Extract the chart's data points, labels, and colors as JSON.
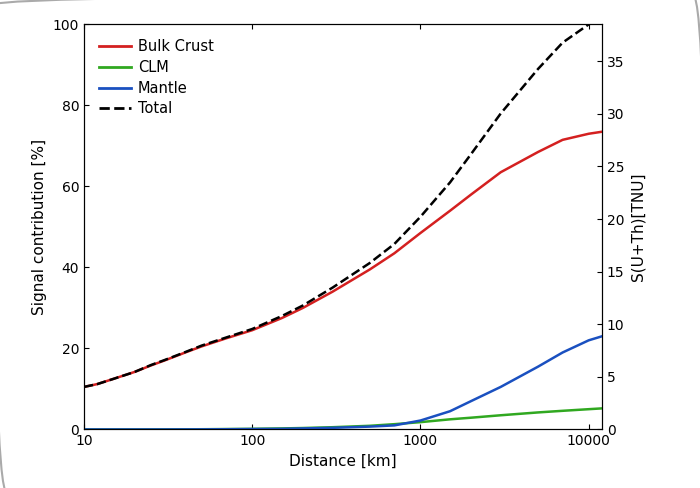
{
  "xlabel": "Distance [km]",
  "ylabel_left": "Signal contribution [%]",
  "ylabel_right": "S(U+Th)[TNU]",
  "xlim": [
    10,
    12000
  ],
  "ylim_left": [
    0,
    100
  ],
  "ylim_right": [
    0,
    38.5
  ],
  "yticks_left": [
    0,
    20,
    40,
    60,
    80,
    100
  ],
  "yticks_right": [
    0,
    5,
    10,
    15,
    20,
    25,
    30,
    35
  ],
  "xticks": [
    10,
    100,
    1000,
    10000
  ],
  "xticklabels": [
    "10",
    "100",
    "1000",
    "10000"
  ],
  "legend_labels": [
    "Bulk Crust",
    "CLM",
    "Mantle",
    "Total"
  ],
  "legend_colors": [
    "#d42020",
    "#30a820",
    "#1a50c0",
    "#000000"
  ],
  "legend_styles": [
    "-",
    "-",
    "-",
    "--"
  ],
  "bulk_crust_x": [
    10,
    12,
    15,
    20,
    25,
    30,
    40,
    50,
    70,
    100,
    150,
    200,
    300,
    500,
    700,
    1000,
    1500,
    2000,
    3000,
    5000,
    7000,
    10000,
    12000
  ],
  "bulk_crust_y": [
    10.5,
    11.2,
    12.5,
    14.2,
    15.8,
    17.0,
    19.0,
    20.5,
    22.5,
    24.5,
    27.5,
    30.0,
    34.0,
    39.5,
    43.5,
    48.5,
    54.0,
    58.0,
    63.5,
    68.5,
    71.5,
    73.0,
    73.5
  ],
  "clm_x": [
    10,
    20,
    30,
    50,
    70,
    100,
    150,
    200,
    300,
    500,
    700,
    1000,
    1500,
    2000,
    3000,
    5000,
    7000,
    10000,
    12000
  ],
  "clm_y": [
    0.0,
    0.0,
    0.02,
    0.05,
    0.1,
    0.15,
    0.25,
    0.35,
    0.55,
    0.9,
    1.3,
    1.8,
    2.5,
    2.9,
    3.5,
    4.2,
    4.6,
    5.0,
    5.2
  ],
  "mantle_x": [
    10,
    20,
    30,
    50,
    70,
    100,
    150,
    200,
    300,
    500,
    700,
    1000,
    1500,
    2000,
    3000,
    5000,
    7000,
    10000,
    12000
  ],
  "mantle_y": [
    0.0,
    0.0,
    0.0,
    0.02,
    0.05,
    0.1,
    0.15,
    0.25,
    0.4,
    0.7,
    1.0,
    2.2,
    4.5,
    7.0,
    10.5,
    15.5,
    19.0,
    22.0,
    23.0
  ],
  "total_x": [
    10,
    12,
    15,
    20,
    25,
    30,
    40,
    50,
    70,
    100,
    150,
    200,
    300,
    500,
    700,
    1000,
    1500,
    2000,
    3000,
    5000,
    7000,
    10000,
    12000
  ],
  "total_y": [
    10.5,
    11.2,
    12.5,
    14.2,
    15.9,
    17.1,
    19.1,
    20.7,
    22.7,
    24.8,
    28.0,
    30.6,
    35.0,
    41.1,
    45.8,
    52.5,
    61.0,
    68.0,
    78.0,
    89.0,
    95.5,
    100.0,
    101.5
  ],
  "line_colors": {
    "bulk_crust": "#d42020",
    "clm": "#30a820",
    "mantle": "#1a50c0",
    "total": "#000000"
  },
  "line_widths": {
    "bulk_crust": 1.8,
    "clm": 1.8,
    "mantle": 1.8,
    "total": 1.8
  },
  "figsize": [
    7.0,
    4.88
  ],
  "dpi": 100,
  "bg_color": "#f5f5f5",
  "frame_color": "#cccccc"
}
